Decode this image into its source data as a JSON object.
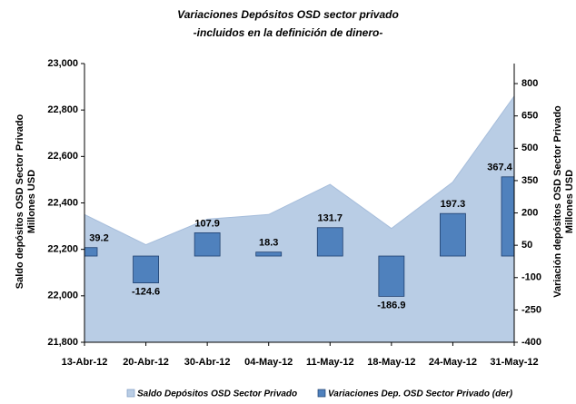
{
  "chart_data": {
    "type": "combo",
    "title": [
      "Variaciones Depósitos OSD sector privado",
      "-incluidos en la definición de dinero-"
    ],
    "y_label": [
      "Saldo depósitos OSD Sector Privado",
      "Millones USD"
    ],
    "y2_label": [
      "Variación depósitos OSD Sector Privado",
      "Millones USD"
    ],
    "categories": [
      "13-Abr-12",
      "20-Abr-12",
      "30-Abr-12",
      "04-May-12",
      "11-May-12",
      "18-May-12",
      "24-May-12",
      "31-May-12"
    ],
    "series": [
      {
        "name": "Saldo Depósitos OSD Sector Privado",
        "type": "area",
        "color": "#b9cde5",
        "values": [
          22350,
          22220,
          22330,
          22350,
          22480,
          22290,
          22490,
          22860
        ]
      },
      {
        "name": "Variaciones Dep. OSD Sector Privado (der)",
        "type": "bar",
        "axis": "y2",
        "color": "#4f81bd",
        "values": [
          39.2,
          -124.6,
          107.9,
          18.3,
          131.7,
          -186.9,
          197.3,
          367.4
        ]
      }
    ],
    "ylim": [
      21800,
      23000
    ],
    "yticks": [
      {
        "value": 21800,
        "label": "21,800"
      },
      {
        "value": 22000,
        "label": "22,000"
      },
      {
        "value": 22200,
        "label": "22,200"
      },
      {
        "value": 22400,
        "label": "22,400"
      },
      {
        "value": 22600,
        "label": "22,600"
      },
      {
        "value": 22800,
        "label": "22,800"
      },
      {
        "value": 23000,
        "label": "23,000"
      }
    ],
    "y2lim": [
      -400,
      893
    ],
    "y2ticks": [
      -400,
      -250,
      -100,
      50,
      200,
      350,
      500,
      650,
      800
    ],
    "legend": "bottom"
  }
}
